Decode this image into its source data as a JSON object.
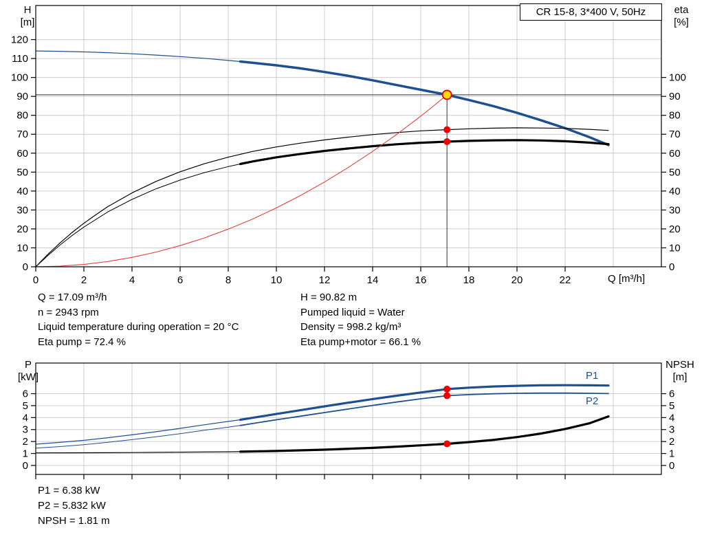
{
  "colors": {
    "blue": "#1d4f91",
    "black": "#000000",
    "red_curve": "#e2403a",
    "dot": "#ee0000",
    "duty_fill": "#ffd800",
    "duty_stroke": "#e00000",
    "grid": "#cccccc",
    "guide": "#333333"
  },
  "info_left": [
    "Q = 17.09 m³/h",
    "n = 2943 rpm",
    "Liquid temperature during operation = 20 °C",
    "Eta pump = 72.4 %"
  ],
  "info_right": [
    "H = 90.82 m",
    "Pumped liquid = Water",
    "Density = 998.2 kg/m³",
    "Eta pump+motor = 66.1 %"
  ],
  "footer_lines": [
    "P1 = 6.38 kW",
    "P2 = 5.832 kW",
    "NPSH = 1.81 m"
  ],
  "chart_data": [
    {
      "type": "line",
      "title": "CR 15-8, 3*400 V, 50Hz",
      "x_axis": {
        "label": "Q [m³/h]",
        "min": 0,
        "max": 26,
        "show_labels": true,
        "ticks": [
          0,
          2,
          4,
          6,
          8,
          10,
          12,
          14,
          16,
          18,
          20,
          22
        ],
        "grid": [
          2,
          4,
          6,
          8,
          10,
          12,
          14,
          16,
          18,
          20,
          22,
          24
        ]
      },
      "y_left": {
        "label": "H",
        "unit": "[m]",
        "min": 0,
        "max": 138,
        "ticks": [
          0,
          10,
          20,
          30,
          40,
          50,
          60,
          70,
          80,
          90,
          100,
          110,
          120
        ]
      },
      "y_right": {
        "label": "eta",
        "unit": "[%]",
        "min": 0,
        "max": 138,
        "ticks": [
          0,
          10,
          20,
          30,
          40,
          50,
          60,
          70,
          80,
          90,
          100
        ]
      },
      "duty_point": {
        "q": 17.09,
        "h": 90.82,
        "eta_pump": 72.4,
        "eta_pump_motor": 66.1
      },
      "guides": [
        {
          "type": "hline",
          "value": 90.82
        },
        {
          "type": "vline",
          "x": 17.09,
          "y_from": 0,
          "y_to": 90.82
        }
      ],
      "series": [
        {
          "name": "h-curve-thin",
          "color": "#1d4f91",
          "width": 1.2,
          "points": [
            [
              0,
              114
            ],
            [
              1,
              113.8
            ],
            [
              2,
              113.5
            ],
            [
              3,
              113.1
            ],
            [
              4,
              112.5
            ],
            [
              5,
              111.8
            ],
            [
              6,
              111
            ],
            [
              7,
              110.1
            ],
            [
              8,
              109
            ],
            [
              8.5,
              108.4
            ]
          ]
        },
        {
          "name": "h-curve-thick",
          "color": "#1d4f91",
          "width": 3.5,
          "points": [
            [
              8.5,
              108.4
            ],
            [
              9,
              107.8
            ],
            [
              10,
              106.4
            ],
            [
              11,
              104.8
            ],
            [
              12,
              102.9
            ],
            [
              13,
              100.8
            ],
            [
              14,
              98.5
            ],
            [
              15,
              96
            ],
            [
              16,
              93.5
            ],
            [
              17.09,
              90.82
            ],
            [
              18,
              88.1
            ],
            [
              19,
              84.9
            ],
            [
              20,
              81.3
            ],
            [
              21,
              77.4
            ],
            [
              22,
              73.2
            ],
            [
              23,
              68.5
            ],
            [
              23.8,
              64.3
            ]
          ]
        },
        {
          "name": "eta-pump-thin",
          "color": "#000000",
          "width": 1.2,
          "points": [
            [
              0,
              0
            ],
            [
              0.5,
              6.5
            ],
            [
              1,
              12.5
            ],
            [
              1.5,
              18
            ],
            [
              2,
              23
            ],
            [
              2.5,
              27.5
            ],
            [
              3,
              31.8
            ],
            [
              4,
              39
            ],
            [
              5,
              45.1
            ],
            [
              6,
              50.2
            ],
            [
              7,
              54.4
            ],
            [
              8,
              57.9
            ],
            [
              9,
              60.9
            ],
            [
              10,
              63.3
            ],
            [
              11,
              65.3
            ],
            [
              12,
              67
            ],
            [
              13,
              68.5
            ],
            [
              14,
              69.8
            ],
            [
              15,
              70.9
            ],
            [
              16,
              71.8
            ],
            [
              17.09,
              72.4
            ],
            [
              18,
              72.9
            ],
            [
              19,
              73.2
            ],
            [
              20,
              73.4
            ],
            [
              21,
              73.3
            ],
            [
              22,
              73.1
            ],
            [
              23,
              72.6
            ],
            [
              23.8,
              72
            ]
          ]
        },
        {
          "name": "eta-total-thin",
          "color": "#000000",
          "width": 1,
          "points": [
            [
              0,
              0
            ],
            [
              0.5,
              5.9
            ],
            [
              1,
              11.4
            ],
            [
              1.5,
              16.4
            ],
            [
              2,
              21
            ],
            [
              3,
              29
            ],
            [
              4,
              35.6
            ],
            [
              5,
              41.2
            ],
            [
              6,
              45.8
            ],
            [
              7,
              49.7
            ],
            [
              8,
              52.9
            ],
            [
              8.5,
              54.3
            ]
          ]
        },
        {
          "name": "eta-total-thick",
          "color": "#000000",
          "width": 3.2,
          "points": [
            [
              8.5,
              54.3
            ],
            [
              9,
              55.6
            ],
            [
              10,
              57.8
            ],
            [
              11,
              59.6
            ],
            [
              12,
              61.2
            ],
            [
              13,
              62.5
            ],
            [
              14,
              63.7
            ],
            [
              15,
              64.7
            ],
            [
              16,
              65.5
            ],
            [
              17.09,
              66.1
            ],
            [
              18,
              66.5
            ],
            [
              19,
              66.8
            ],
            [
              20,
              66.9
            ],
            [
              21,
              66.7
            ],
            [
              22,
              66.3
            ],
            [
              23,
              65.6
            ],
            [
              23.8,
              64.8
            ]
          ]
        },
        {
          "name": "system-curve",
          "color": "#e2403a",
          "width": 1.1,
          "points": [
            [
              0,
              0
            ],
            [
              1,
              0.31
            ],
            [
              2,
              1.24
            ],
            [
              3,
              2.8
            ],
            [
              4,
              4.97
            ],
            [
              5,
              7.77
            ],
            [
              6,
              11.19
            ],
            [
              7,
              15.23
            ],
            [
              8,
              19.9
            ],
            [
              9,
              25.18
            ],
            [
              10,
              31.09
            ],
            [
              11,
              37.62
            ],
            [
              12,
              44.77
            ],
            [
              13,
              52.54
            ],
            [
              14,
              60.93
            ],
            [
              15,
              69.95
            ],
            [
              16,
              79.58
            ],
            [
              16.5,
              84.63
            ],
            [
              17.09,
              90.82
            ]
          ]
        }
      ],
      "markers": [
        {
          "x": 17.09,
          "y": 90.82,
          "style": "duty"
        },
        {
          "x": 17.09,
          "y": 72.4,
          "style": "dot"
        },
        {
          "x": 17.09,
          "y": 66.1,
          "style": "dot"
        }
      ]
    },
    {
      "type": "line",
      "legend": [
        "P1",
        "P2"
      ],
      "x_axis": {
        "label": "",
        "min": 0,
        "max": 26,
        "show_labels": false,
        "ticks": [
          0,
          2,
          4,
          6,
          8,
          10,
          12,
          14,
          16,
          18,
          20,
          22
        ],
        "grid": [
          2,
          4,
          6,
          8,
          10,
          12,
          14,
          16,
          18,
          20,
          22,
          24
        ]
      },
      "y_left": {
        "label": "P",
        "unit": "[kW]",
        "min": -0.75,
        "max": 8.56,
        "ticks": [
          0,
          1,
          2,
          3,
          4,
          5,
          6
        ]
      },
      "y_right": {
        "label": "NPSH",
        "unit": "[m]",
        "min": -0.75,
        "max": 8.56,
        "ticks": [
          0,
          1,
          2,
          3,
          4,
          5,
          6
        ]
      },
      "duty_point": {
        "q": 17.09,
        "p1_kw": 6.38,
        "p2_kw": 5.832,
        "npsh_m": 1.81
      },
      "guides": [],
      "series": [
        {
          "name": "p1-thin",
          "color": "#1d4f91",
          "width": 1.2,
          "points": [
            [
              0,
              1.78
            ],
            [
              1,
              1.93
            ],
            [
              2,
              2.1
            ],
            [
              3,
              2.32
            ],
            [
              4,
              2.56
            ],
            [
              5,
              2.82
            ],
            [
              6,
              3.1
            ],
            [
              7,
              3.4
            ],
            [
              8,
              3.68
            ],
            [
              8.5,
              3.82
            ]
          ]
        },
        {
          "name": "p1-thick",
          "color": "#1d4f91",
          "width": 3.2,
          "points": [
            [
              8.5,
              3.82
            ],
            [
              9,
              3.98
            ],
            [
              10,
              4.3
            ],
            [
              11,
              4.62
            ],
            [
              12,
              4.94
            ],
            [
              13,
              5.25
            ],
            [
              14,
              5.55
            ],
            [
              15,
              5.83
            ],
            [
              16,
              6.1
            ],
            [
              17.09,
              6.38
            ],
            [
              18,
              6.5
            ],
            [
              19,
              6.6
            ],
            [
              20,
              6.66
            ],
            [
              21,
              6.7
            ],
            [
              22,
              6.71
            ],
            [
              23,
              6.7
            ],
            [
              23.8,
              6.68
            ]
          ]
        },
        {
          "name": "p2-thin",
          "color": "#1d4f91",
          "width": 1,
          "points": [
            [
              0,
              1.45
            ],
            [
              1,
              1.58
            ],
            [
              2,
              1.74
            ],
            [
              3,
              1.94
            ],
            [
              4,
              2.16
            ],
            [
              5,
              2.4
            ],
            [
              6,
              2.66
            ],
            [
              7,
              2.94
            ],
            [
              8,
              3.2
            ],
            [
              8.5,
              3.34
            ]
          ]
        },
        {
          "name": "p2-thick",
          "color": "#1d4f91",
          "width": 1.8,
          "points": [
            [
              8.5,
              3.34
            ],
            [
              9,
              3.5
            ],
            [
              10,
              3.82
            ],
            [
              11,
              4.12
            ],
            [
              12,
              4.42
            ],
            [
              13,
              4.72
            ],
            [
              14,
              5.02
            ],
            [
              15,
              5.3
            ],
            [
              16,
              5.57
            ],
            [
              17.09,
              5.832
            ],
            [
              18,
              5.92
            ],
            [
              19,
              5.99
            ],
            [
              20,
              6.03
            ],
            [
              21,
              6.05
            ],
            [
              22,
              6.05
            ],
            [
              23,
              6.03
            ],
            [
              23.8,
              6.01
            ]
          ]
        },
        {
          "name": "npsh-thin",
          "color": "#000000",
          "width": 1.2,
          "points": [
            [
              0,
              1.05
            ],
            [
              2,
              1.06
            ],
            [
              4,
              1.08
            ],
            [
              6,
              1.11
            ],
            [
              8,
              1.14
            ],
            [
              8.5,
              1.15
            ]
          ]
        },
        {
          "name": "npsh-thick",
          "color": "#000000",
          "width": 3.2,
          "points": [
            [
              8.5,
              1.15
            ],
            [
              10,
              1.21
            ],
            [
              12,
              1.32
            ],
            [
              14,
              1.47
            ],
            [
              15,
              1.57
            ],
            [
              16,
              1.68
            ],
            [
              17.09,
              1.81
            ],
            [
              18,
              1.95
            ],
            [
              19,
              2.13
            ],
            [
              20,
              2.37
            ],
            [
              21,
              2.67
            ],
            [
              22,
              3.05
            ],
            [
              23,
              3.52
            ],
            [
              23.8,
              4.1
            ]
          ]
        }
      ],
      "markers": [
        {
          "x": 17.09,
          "y": 6.38,
          "style": "dot"
        },
        {
          "x": 17.09,
          "y": 5.832,
          "style": "dot"
        },
        {
          "x": 17.09,
          "y": 1.81,
          "style": "dot"
        }
      ]
    }
  ]
}
